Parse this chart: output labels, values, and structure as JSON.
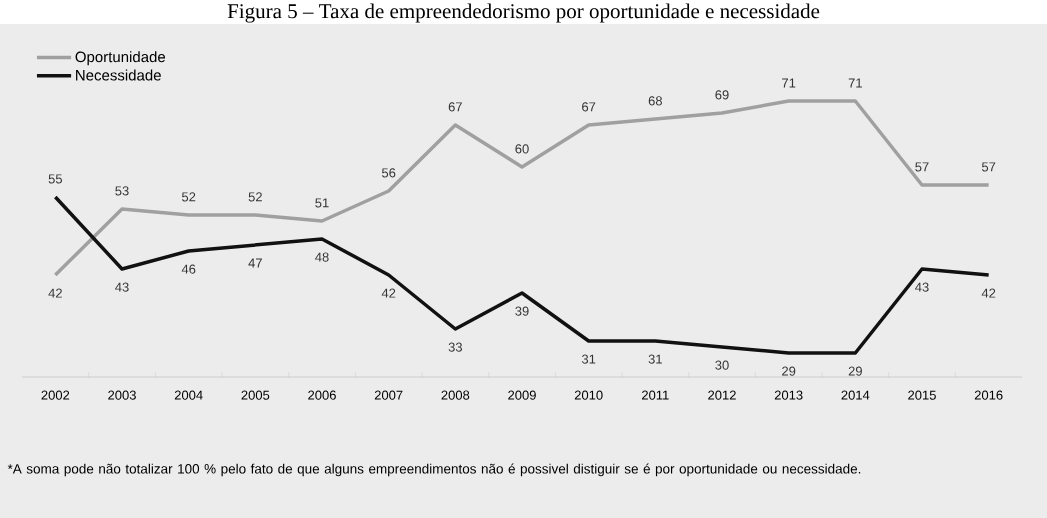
{
  "chart_data": {
    "type": "line",
    "title": "Figura 5 – Taxa de empreendedorismo por oportunidade e necessidade",
    "categories": [
      "2002",
      "2003",
      "2004",
      "2005",
      "2006",
      "2007",
      "2008",
      "2009",
      "2010",
      "2011",
      "2012",
      "2013",
      "2014",
      "2015",
      "2016"
    ],
    "series": [
      {
        "name": "Oportunidade",
        "color": "#a0a0a0",
        "values": [
          42,
          53,
          52,
          52,
          51,
          56,
          67,
          60,
          67,
          68,
          69,
          71,
          71,
          57,
          57
        ]
      },
      {
        "name": "Necessidade",
        "color": "#111111",
        "values": [
          55,
          43,
          46,
          47,
          48,
          42,
          33,
          39,
          31,
          31,
          30,
          29,
          29,
          43,
          42
        ]
      }
    ],
    "data_labels": true,
    "legend": "top left",
    "grid": false,
    "marker": "none",
    "line_style": "solid",
    "annotations": [
      "*A soma pode não totalizar 100 % pelo fato de que alguns empreendimentos não é possivel distiguir se é por oportunidade ou necessidade."
    ]
  }
}
